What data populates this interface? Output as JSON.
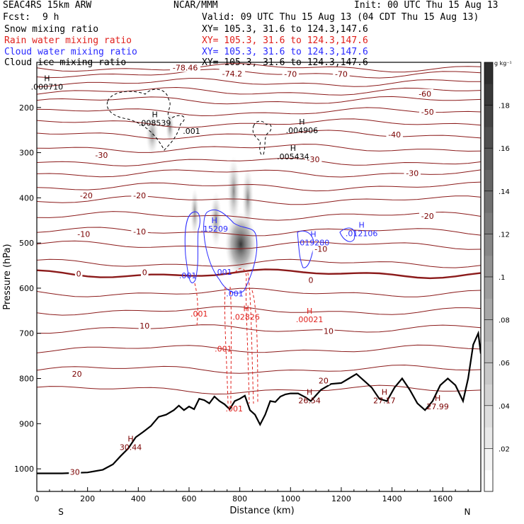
{
  "header": {
    "model": "SEAC4RS 15km ARW",
    "org": "NCAR/MMM",
    "init": "Init: 00 UTC Thu 15 Aug 13",
    "fcst_label": "Fcst:",
    "fcst_value": "9 h",
    "valid": "Valid: 09 UTC Thu 15 Aug 13 (04 CDT Thu 15 Aug 13)"
  },
  "fields": [
    {
      "name": "Snow mixing ratio",
      "xy": "XY= 105.3, 31.6 to 124.3,147.6",
      "color": "#000000"
    },
    {
      "name": "Rain water mixing ratio",
      "xy": "XY= 105.3, 31.6 to 124.3,147.6",
      "color": "#e0201c"
    },
    {
      "name": "Cloud water mixing ratio",
      "xy": "XY= 105.3, 31.6 to 124.3,147.6",
      "color": "#2a2aff"
    },
    {
      "name": "Cloud ice mixing ratio",
      "xy": "XY= 105.3, 31.6 to 124.3,147.6",
      "color": "#000000"
    }
  ],
  "chart_data": {
    "type": "contour cross-section",
    "xlabel": "Distance (km)",
    "ylabel": "Pressure (hPa)",
    "xlim": [
      0,
      1750
    ],
    "ylim": [
      1050,
      100
    ],
    "xticks": [
      "0",
      "200",
      "400",
      "600",
      "800",
      "1000",
      "1200",
      "1400",
      "1600"
    ],
    "yticks": [
      "200",
      "300",
      "400",
      "500",
      "600",
      "700",
      "800",
      "900",
      "1000"
    ],
    "endpoints": {
      "left": "S",
      "right": "N"
    },
    "colorbar": {
      "units": "g kg⁻¹",
      "ticks": [
        ".02",
        ".04",
        ".06",
        ".08",
        ".1",
        ".12",
        ".14",
        ".16",
        ".18"
      ],
      "max": 0.2
    },
    "temperature_labels": [
      {
        "x": 585,
        "p": 112,
        "text": "-78.46"
      },
      {
        "x": 770,
        "p": 125,
        "text": "-74.2"
      },
      {
        "x": 1000,
        "p": 126,
        "text": "-70"
      },
      {
        "x": 1200,
        "p": 126,
        "text": "-70"
      },
      {
        "x": 1530,
        "p": 170,
        "text": "-60"
      },
      {
        "x": 1540,
        "p": 210,
        "text": "-50"
      },
      {
        "x": 1410,
        "p": 260,
        "text": "-40"
      },
      {
        "x": 255,
        "p": 305,
        "text": "-30"
      },
      {
        "x": 1090,
        "p": 315,
        "text": "-30"
      },
      {
        "x": 1480,
        "p": 345,
        "text": "-30"
      },
      {
        "x": 195,
        "p": 395,
        "text": "-20"
      },
      {
        "x": 405,
        "p": 395,
        "text": "-20"
      },
      {
        "x": 1540,
        "p": 440,
        "text": "-20"
      },
      {
        "x": 185,
        "p": 480,
        "text": "-10"
      },
      {
        "x": 405,
        "p": 475,
        "text": "-10"
      },
      {
        "x": 1120,
        "p": 513,
        "text": "-10"
      },
      {
        "x": 165,
        "p": 568,
        "text": "0"
      },
      {
        "x": 425,
        "p": 565,
        "text": "0"
      },
      {
        "x": 1080,
        "p": 582,
        "text": "0"
      },
      {
        "x": 425,
        "p": 683,
        "text": "10"
      },
      {
        "x": 1150,
        "p": 695,
        "text": "10"
      },
      {
        "x": 158,
        "p": 790,
        "text": "20"
      },
      {
        "x": 1130,
        "p": 805,
        "text": "20"
      },
      {
        "x": 150,
        "p": 1007,
        "text": "30"
      }
    ],
    "highs": [
      {
        "x": 40,
        "p": 160,
        "text": ".000710",
        "color": "#000000"
      },
      {
        "x": 465,
        "p": 240,
        "text": ".008539",
        "color": "#000000"
      },
      {
        "x": 1045,
        "p": 257,
        "text": ".004906",
        "color": "#000000"
      },
      {
        "x": 1010,
        "p": 315,
        "text": ".005434",
        "color": "#000000"
      },
      {
        "x": 700,
        "p": 475,
        "text": ".15209",
        "color": "#2a2aff"
      },
      {
        "x": 1090,
        "p": 505,
        "text": ".019280",
        "color": "#2a2aff"
      },
      {
        "x": 1280,
        "p": 485,
        "text": ".012106",
        "color": "#2a2aff"
      },
      {
        "x": 1075,
        "p": 675,
        "text": ".00021",
        "color": "#e0201c"
      },
      {
        "x": 825,
        "p": 670,
        "text": ".02826",
        "color": "#e0201c"
      },
      {
        "x": 1075,
        "p": 855,
        "text": "26.54",
        "color": "#7a0000"
      },
      {
        "x": 1370,
        "p": 855,
        "text": "27.17",
        "color": "#7a0000"
      },
      {
        "x": 1580,
        "p": 868,
        "text": "27.99",
        "color": "#7a0000"
      },
      {
        "x": 370,
        "p": 958,
        "text": "30.44",
        "color": "#7a0000"
      }
    ],
    "field_labels": [
      {
        "x": 610,
        "p": 258,
        "text": ".001",
        "color": "#000000"
      },
      {
        "x": 595,
        "p": 578,
        "text": ".001",
        "color": "#2a2aff"
      },
      {
        "x": 735,
        "p": 570,
        "text": ".001",
        "color": "#2a2aff"
      },
      {
        "x": 780,
        "p": 618,
        "text": ".001",
        "color": "#2a2aff"
      },
      {
        "x": 640,
        "p": 663,
        "text": ".001",
        "color": "#e0201c"
      },
      {
        "x": 735,
        "p": 740,
        "text": ".001",
        "color": "#e0201c"
      },
      {
        "x": 778,
        "p": 873,
        "text": ".001",
        "color": "#e0201c"
      }
    ],
    "terrain_height_p": [
      [
        0,
        1010
      ],
      [
        100,
        1010
      ],
      [
        200,
        1008
      ],
      [
        260,
        1002
      ],
      [
        300,
        990
      ],
      [
        330,
        972
      ],
      [
        360,
        955
      ],
      [
        390,
        930
      ],
      [
        420,
        918
      ],
      [
        450,
        905
      ],
      [
        480,
        885
      ],
      [
        510,
        880
      ],
      [
        540,
        870
      ],
      [
        560,
        860
      ],
      [
        580,
        870
      ],
      [
        600,
        862
      ],
      [
        620,
        868
      ],
      [
        640,
        845
      ],
      [
        660,
        848
      ],
      [
        680,
        855
      ],
      [
        700,
        840
      ],
      [
        720,
        850
      ],
      [
        740,
        857
      ],
      [
        760,
        868
      ],
      [
        780,
        850
      ],
      [
        800,
        845
      ],
      [
        820,
        838
      ],
      [
        840,
        870
      ],
      [
        860,
        880
      ],
      [
        880,
        902
      ],
      [
        900,
        880
      ],
      [
        920,
        850
      ],
      [
        940,
        852
      ],
      [
        960,
        840
      ],
      [
        980,
        835
      ],
      [
        1000,
        833
      ],
      [
        1030,
        833
      ],
      [
        1060,
        842
      ],
      [
        1080,
        850
      ],
      [
        1120,
        825
      ],
      [
        1160,
        812
      ],
      [
        1200,
        810
      ],
      [
        1230,
        800
      ],
      [
        1260,
        790
      ],
      [
        1290,
        805
      ],
      [
        1320,
        820
      ],
      [
        1350,
        845
      ],
      [
        1380,
        850
      ],
      [
        1410,
        820
      ],
      [
        1440,
        800
      ],
      [
        1470,
        825
      ],
      [
        1500,
        855
      ],
      [
        1530,
        870
      ],
      [
        1560,
        850
      ],
      [
        1590,
        815
      ],
      [
        1620,
        800
      ],
      [
        1650,
        815
      ],
      [
        1680,
        850
      ],
      [
        1700,
        800
      ],
      [
        1720,
        725
      ],
      [
        1740,
        700
      ],
      [
        1750,
        745
      ]
    ]
  }
}
